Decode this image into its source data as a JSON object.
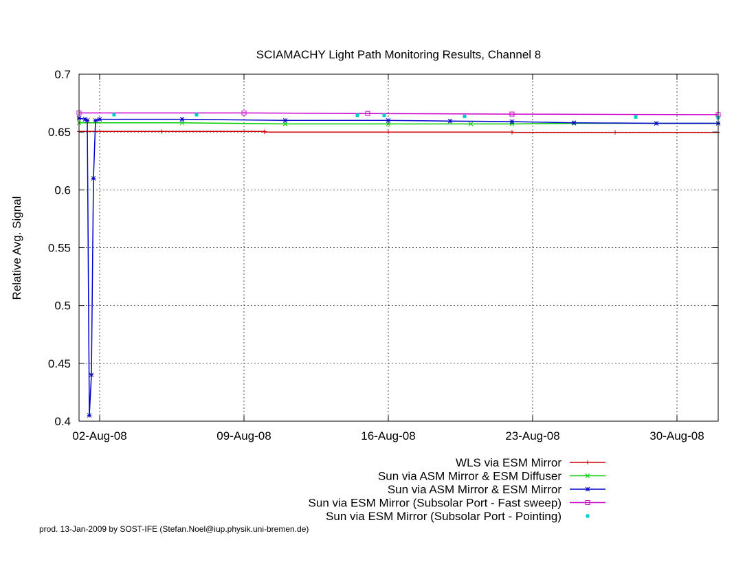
{
  "chart_data": {
    "type": "line",
    "title": "SCIAMACHY Light Path Monitoring Results, Channel 8",
    "ylabel": "Relative Avg. Signal",
    "xlabel": "",
    "xlim": [
      "2008-08-01",
      "2008-09-01"
    ],
    "ylim": [
      0.4,
      0.7
    ],
    "grid": true,
    "legend_position": "bottom-center",
    "x_ticks": [
      {
        "date": "2008-08-02",
        "label": "02-Aug-08"
      },
      {
        "date": "2008-08-09",
        "label": "09-Aug-08"
      },
      {
        "date": "2008-08-16",
        "label": "16-Aug-08"
      },
      {
        "date": "2008-08-23",
        "label": "23-Aug-08"
      },
      {
        "date": "2008-08-30",
        "label": "30-Aug-08"
      }
    ],
    "y_ticks": [
      {
        "value": 0.4,
        "label": "0.4"
      },
      {
        "value": 0.45,
        "label": "0.45"
      },
      {
        "value": 0.5,
        "label": "0.5"
      },
      {
        "value": 0.55,
        "label": "0.55"
      },
      {
        "value": 0.6,
        "label": "0.6"
      },
      {
        "value": 0.65,
        "label": "0.65"
      },
      {
        "value": 0.7,
        "label": "0.7"
      }
    ],
    "series": [
      {
        "name": "WLS via ESM Mirror",
        "color": "#cc0000",
        "marker": "plus",
        "x": [
          "2008-08-01",
          "2008-08-05",
          "2008-08-10",
          "2008-08-10",
          "2008-08-16",
          "2008-08-22",
          "2008-08-22",
          "2008-08-27",
          "2008-09-01"
        ],
        "y": [
          0.6505,
          0.6505,
          0.6505,
          0.65,
          0.65,
          0.65,
          0.6497,
          0.6497,
          0.6497
        ]
      },
      {
        "name": "Sun via ASM Mirror & ESM Diffuser",
        "color": "#00cc00",
        "marker": "x",
        "x": [
          "2008-08-01",
          "2008-08-06",
          "2008-08-11",
          "2008-08-16",
          "2008-08-20",
          "2008-08-22",
          "2008-08-25",
          "2008-08-29",
          "2008-09-01"
        ],
        "y": [
          0.658,
          0.658,
          0.657,
          0.657,
          0.657,
          0.657,
          0.6575,
          0.6575,
          0.6575
        ]
      },
      {
        "name": "Sun via ASM Mirror & ESM Mirror",
        "color": "#0000cc",
        "marker": "star",
        "x": [
          "2008-08-01",
          "2008-08-01.3",
          "2008-08-01.4",
          "2008-08-01.5",
          "2008-08-01.6",
          "2008-08-01.7",
          "2008-08-01.8",
          "2008-08-02",
          "2008-08-06",
          "2008-08-11",
          "2008-08-16",
          "2008-08-19",
          "2008-08-22",
          "2008-08-25",
          "2008-08-29",
          "2008-09-01"
        ],
        "y": [
          0.662,
          0.661,
          0.66,
          0.405,
          0.44,
          0.61,
          0.66,
          0.661,
          0.661,
          0.66,
          0.66,
          0.6595,
          0.659,
          0.658,
          0.6575,
          0.6575
        ]
      },
      {
        "name": "Sun via ESM Mirror (Subsolar Port - Fast sweep)",
        "color": "#cc00cc",
        "marker": "square",
        "x": [
          "2008-08-01",
          "2008-08-09",
          "2008-08-15",
          "2008-08-22",
          "2008-09-01"
        ],
        "y": [
          0.6665,
          0.6665,
          0.666,
          0.6655,
          0.665
        ]
      },
      {
        "name": "Sun via ESM Mirror (Subsolar Port - Pointing)",
        "color": "#00cccc",
        "marker": "dot",
        "x": [
          "2008-08-02.7",
          "2008-08-06.7",
          "2008-08-14.5",
          "2008-08-15.8",
          "2008-08-19.7",
          "2008-08-28",
          "2008-09-01"
        ],
        "y": [
          0.665,
          0.665,
          0.6645,
          0.6645,
          0.6635,
          0.663,
          0.6625
        ]
      }
    ]
  },
  "footer": "prod. 13-Jan-2009 by SOST-IFE (Stefan.Noel@iup.physik.uni-bremen.de)"
}
